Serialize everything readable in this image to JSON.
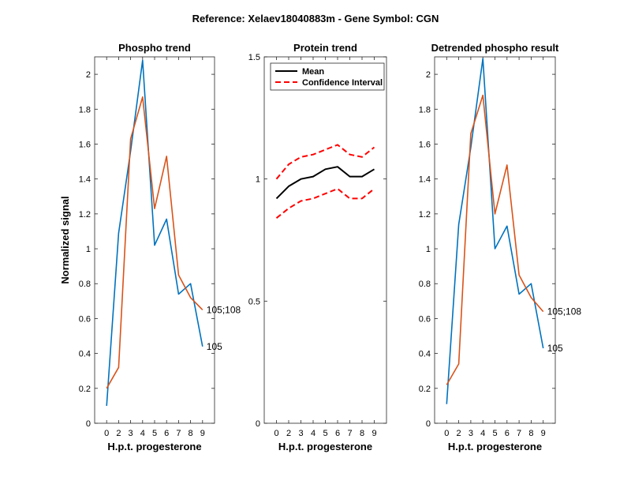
{
  "figure_title": "Reference:  Xelaev18040883m - Gene Symbol:  CGN",
  "chart_data": [
    {
      "type": "line",
      "title": "Phospho trend",
      "xlabel": "H.p.t. progesterone",
      "ylabel": "Normalized signal",
      "x": [
        0,
        2,
        3,
        4,
        5,
        6,
        7,
        8,
        9
      ],
      "xticks": [
        "0",
        "2",
        "3",
        "4",
        "5",
        "6",
        "7",
        "8",
        "9"
      ],
      "ylim": [
        0,
        2.1
      ],
      "yticks": [
        "0",
        "0.2",
        "0.4",
        "0.6",
        "0.8",
        "1",
        "1.2",
        "1.4",
        "1.6",
        "1.8",
        "2"
      ],
      "series": [
        {
          "name": "105",
          "color": "#0072bd",
          "values": [
            0.1,
            1.09,
            1.56,
            2.08,
            1.02,
            1.17,
            0.74,
            0.8,
            0.44
          ]
        },
        {
          "name": "105;108",
          "color": "#d95319",
          "values": [
            0.2,
            0.32,
            1.63,
            1.87,
            1.23,
            1.53,
            0.85,
            0.72,
            0.65
          ]
        }
      ]
    },
    {
      "type": "line",
      "title": "Protein trend",
      "xlabel": "H.p.t. progesterone",
      "ylabel": "",
      "x": [
        0,
        2,
        3,
        4,
        5,
        6,
        7,
        8,
        9
      ],
      "xticks": [
        "0",
        "2",
        "3",
        "4",
        "5",
        "6",
        "7",
        "8",
        "9"
      ],
      "ylim": [
        0,
        1.5
      ],
      "yticks": [
        "0",
        "0.5",
        "1",
        "1.5"
      ],
      "legend": {
        "position": "top-right",
        "entries": [
          "Mean",
          "Confidence Interval"
        ]
      },
      "series": [
        {
          "name": "Mean",
          "color": "#000000",
          "style": "solid",
          "values": [
            0.92,
            0.97,
            1.0,
            1.01,
            1.04,
            1.05,
            1.01,
            1.01,
            1.04
          ]
        },
        {
          "name": "Confidence Interval",
          "color": "#ff0000",
          "style": "dashed",
          "values": [
            1.0,
            1.06,
            1.09,
            1.1,
            1.12,
            1.14,
            1.1,
            1.09,
            1.13
          ]
        },
        {
          "name": "",
          "color": "#ff0000",
          "style": "dashed",
          "values": [
            0.84,
            0.88,
            0.91,
            0.92,
            0.94,
            0.96,
            0.92,
            0.92,
            0.96
          ]
        }
      ]
    },
    {
      "type": "line",
      "title": "Detrended phospho result",
      "xlabel": "H.p.t. progesterone",
      "ylabel": "",
      "x": [
        0,
        2,
        3,
        4,
        5,
        6,
        7,
        8,
        9
      ],
      "xticks": [
        "0",
        "2",
        "3",
        "4",
        "5",
        "6",
        "7",
        "8",
        "9"
      ],
      "ylim": [
        0,
        2.1
      ],
      "yticks": [
        "0",
        "0.2",
        "0.4",
        "0.6",
        "0.8",
        "1",
        "1.2",
        "1.4",
        "1.6",
        "1.8",
        "2"
      ],
      "series": [
        {
          "name": "105",
          "color": "#0072bd",
          "values": [
            0.11,
            1.14,
            1.58,
            2.09,
            1.0,
            1.13,
            0.74,
            0.8,
            0.43
          ]
        },
        {
          "name": "105;108",
          "color": "#d95319",
          "values": [
            0.22,
            0.34,
            1.66,
            1.88,
            1.2,
            1.48,
            0.85,
            0.72,
            0.64
          ]
        }
      ]
    }
  ]
}
